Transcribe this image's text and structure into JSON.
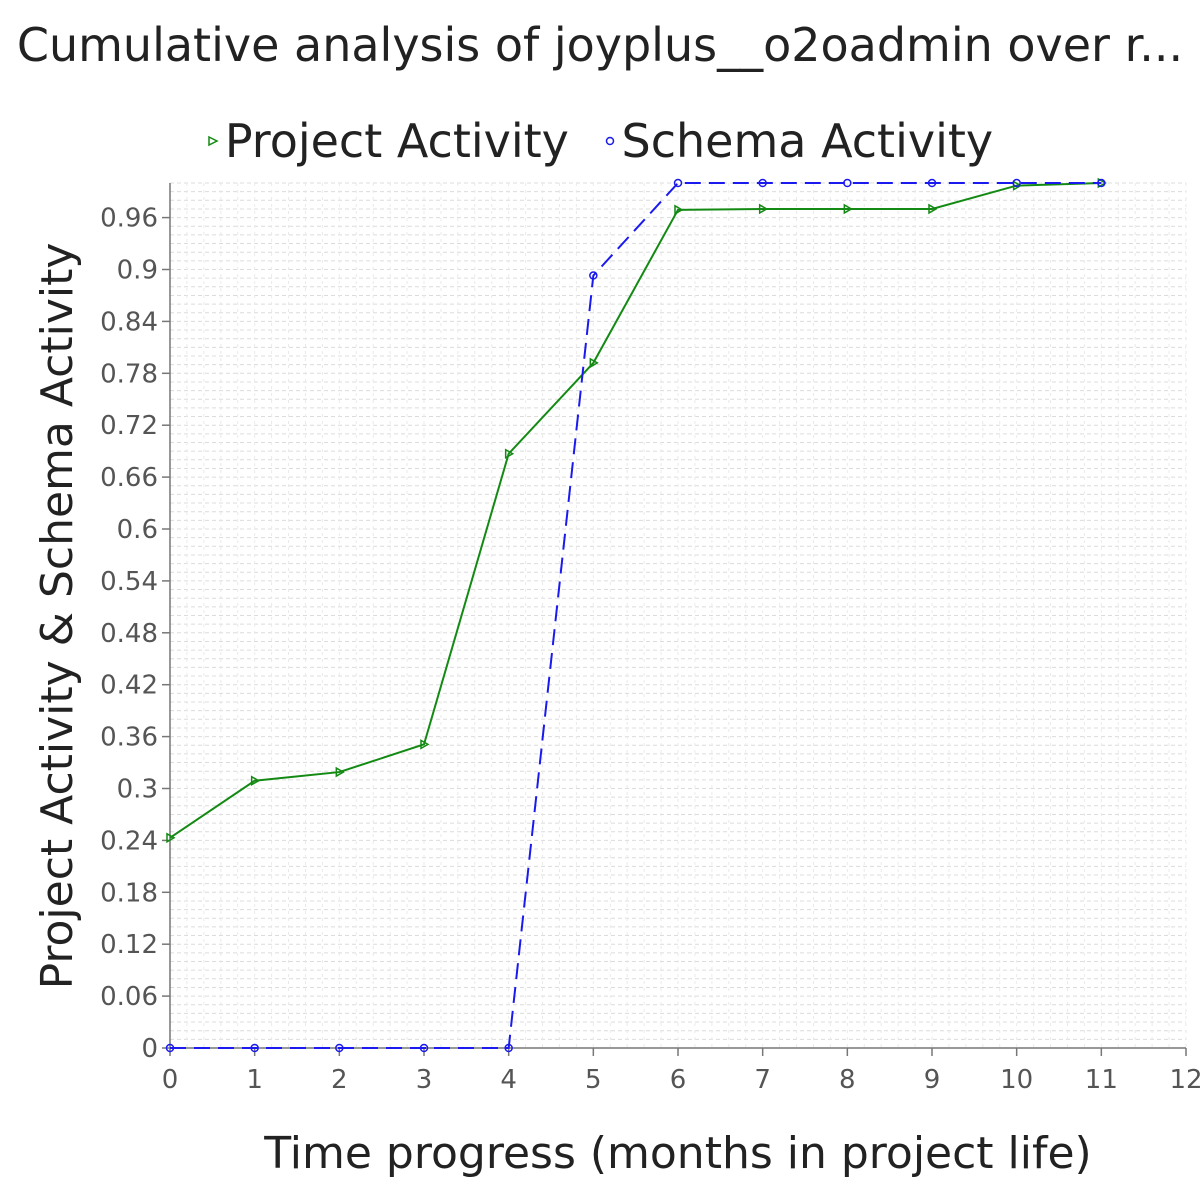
{
  "chart_data": {
    "type": "line",
    "title": "Cumulative analysis of joyplus__o2oadmin over r...",
    "xlabel": "Time progress (months in project life)",
    "ylabel": "Project Activity & Schema Activity",
    "xlim": [
      0,
      12
    ],
    "ylim": [
      0,
      1.0
    ],
    "x_ticks": [
      0,
      1,
      2,
      3,
      4,
      5,
      6,
      7,
      8,
      9,
      10,
      11,
      12
    ],
    "y_ticks": [
      0,
      0.06,
      0.12,
      0.18,
      0.24,
      0.3,
      0.36,
      0.42,
      0.48,
      0.54,
      0.6,
      0.66,
      0.72,
      0.78,
      0.84,
      0.9,
      0.96
    ],
    "grid": true,
    "legend_position": "top",
    "series": [
      {
        "name": "Project Activity",
        "color": "#138a13",
        "line_style": "solid",
        "marker": "triangle-right",
        "x": [
          0,
          1,
          2,
          3,
          4,
          5,
          6,
          7,
          8,
          9,
          10,
          11
        ],
        "y": [
          0.243,
          0.309,
          0.319,
          0.351,
          0.687,
          0.792,
          0.969,
          0.97,
          0.97,
          0.97,
          0.997,
          1.0
        ]
      },
      {
        "name": "Schema Activity",
        "color": "#1a1aee",
        "line_style": "dashed",
        "marker": "circle",
        "x": [
          0,
          1,
          2,
          3,
          4,
          5,
          6,
          7,
          8,
          9,
          10,
          11
        ],
        "y": [
          0,
          0,
          0,
          0,
          0,
          0.893,
          1.0,
          1.0,
          1.0,
          1.0,
          1.0,
          1.0
        ]
      }
    ]
  }
}
